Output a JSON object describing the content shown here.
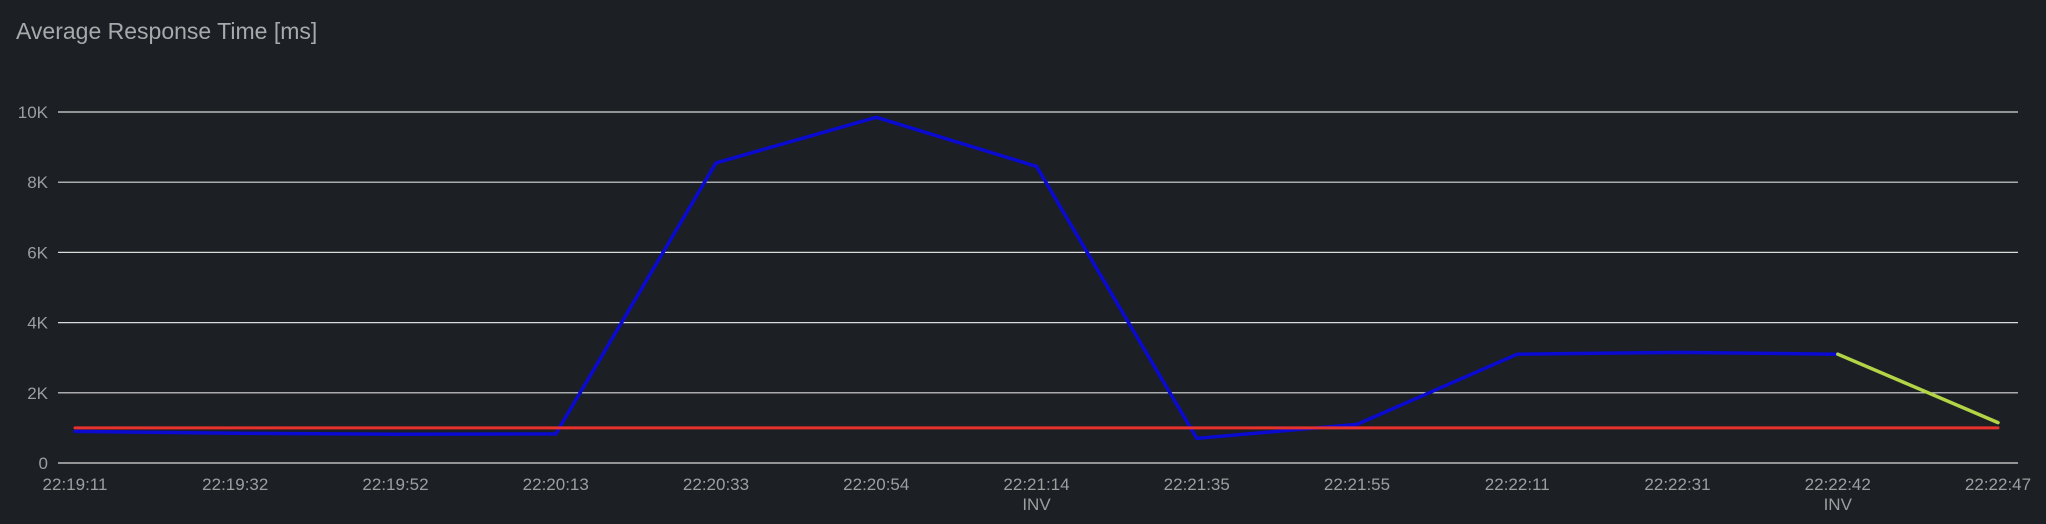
{
  "chart_data": {
    "type": "line",
    "title": "Average Response Time [ms]",
    "xlabel": "",
    "ylabel": "",
    "ylim": [
      0,
      10000
    ],
    "grid": true,
    "y_ticks": [
      {
        "value": 0,
        "label": "0"
      },
      {
        "value": 2000,
        "label": "2K"
      },
      {
        "value": 4000,
        "label": "4K"
      },
      {
        "value": 6000,
        "label": "6K"
      },
      {
        "value": 8000,
        "label": "8K"
      },
      {
        "value": 10000,
        "label": "10K"
      }
    ],
    "categories": [
      "22:19:11",
      "22:19:32",
      "22:19:52",
      "22:20:13",
      "22:20:33",
      "22:20:54",
      "22:21:14",
      "22:21:35",
      "22:21:55",
      "22:22:11",
      "22:22:31",
      "22:22:42",
      "22:22:47"
    ],
    "x_sublabels": [
      "",
      "",
      "",
      "",
      "",
      "",
      "INV",
      "",
      "",
      "",
      "",
      "INV",
      ""
    ],
    "series": [
      {
        "color": "#0a0ad0",
        "values": [
          900,
          850,
          820,
          830,
          8550,
          9850,
          8450,
          700,
          1100,
          3100,
          3150,
          3100,
          null
        ]
      },
      {
        "color": "#b2d446",
        "values": [
          null,
          null,
          null,
          null,
          null,
          null,
          null,
          null,
          null,
          null,
          null,
          3100,
          1150
        ]
      },
      {
        "color": "#e8322c",
        "values": [
          1000,
          1000,
          1000,
          1000,
          1000,
          1000,
          1000,
          1000,
          1000,
          1000,
          1000,
          1000,
          1000
        ]
      }
    ]
  }
}
